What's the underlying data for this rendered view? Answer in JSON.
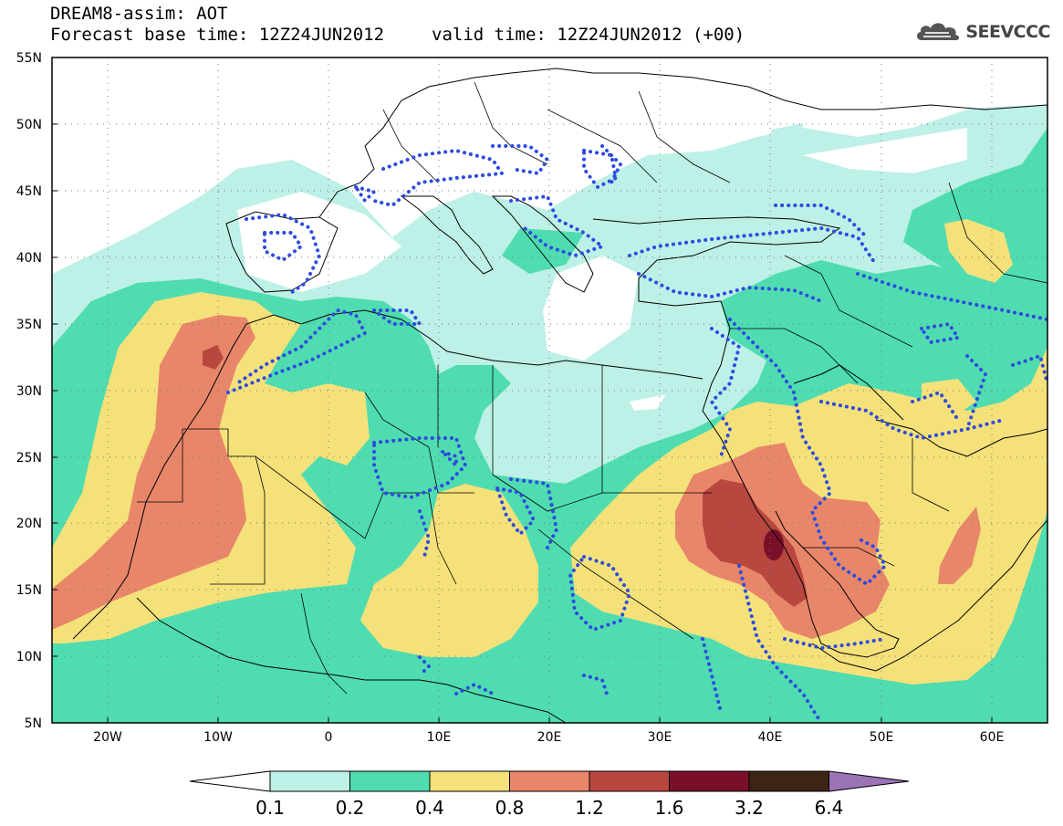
{
  "header": {
    "title": "DREAM8-assim: AOT",
    "base_time": "Forecast base time: 12Z24JUN2012",
    "valid_time": "valid time: 12Z24JUN2012 (+00)"
  },
  "logo": {
    "text": "SEEVCCC",
    "icon": "cloud-icon"
  },
  "map": {
    "lat_labels": [
      "55N",
      "50N",
      "45N",
      "40N",
      "35N",
      "30N",
      "25N",
      "20N",
      "15N",
      "10N",
      "5N"
    ],
    "lon_labels": [
      "20W",
      "10W",
      "0",
      "10E",
      "20E",
      "30E",
      "40E",
      "50E",
      "60E"
    ],
    "lon_range": [
      "25W",
      "65E"
    ],
    "lat_range": [
      "5N",
      "55N"
    ],
    "field": "Aerosol optical thickness",
    "overlay": "blue dotted contours"
  },
  "colorbar": {
    "labels": [
      "0.1",
      "0.2",
      "0.4",
      "0.8",
      "1.2",
      "1.6",
      "3.2",
      "6.4"
    ],
    "colors": [
      "#ffffff",
      "#bdf0e6",
      "#4fdcb0",
      "#f5e17a",
      "#e8866a",
      "#b8473f",
      "#7a0f2a",
      "#3e2414",
      "#9b73b6"
    ]
  },
  "colors": {
    "aot_0_1": "#bdf0e6",
    "aot_0_2": "#4fdcb0",
    "aot_0_4": "#f5e17a",
    "aot_0_8": "#e8866a",
    "aot_1_2": "#b8473f",
    "aot_1_6": "#7a0f2a",
    "contour": "#2d4be0"
  }
}
